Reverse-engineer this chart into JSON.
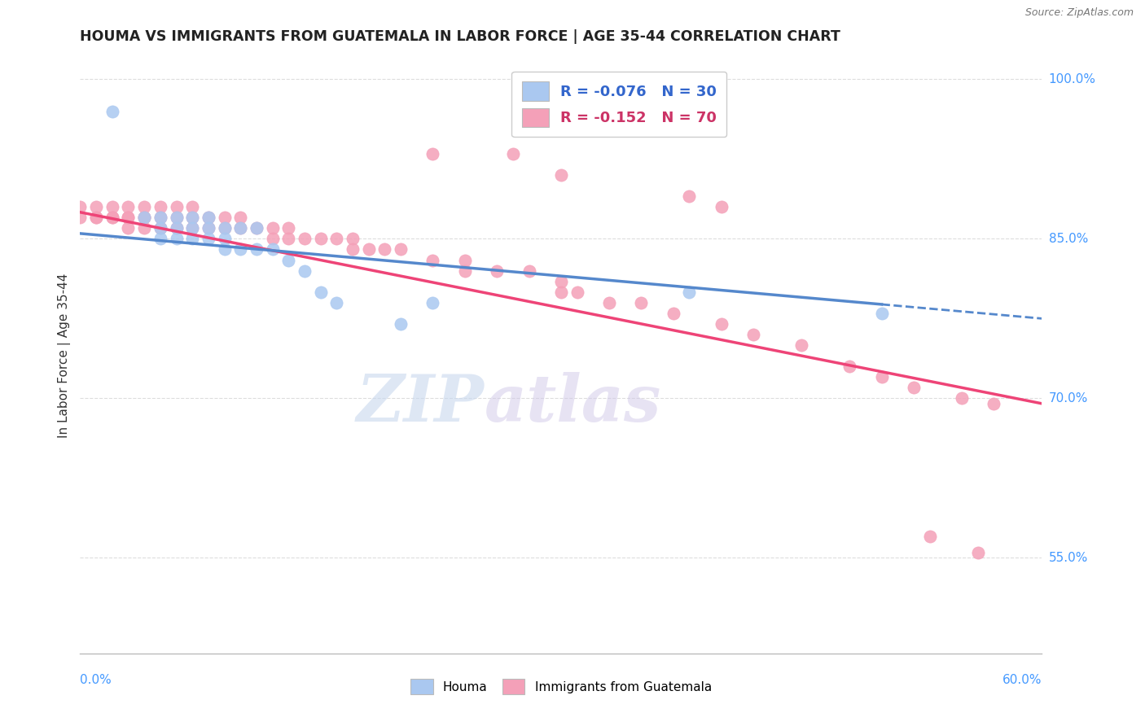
{
  "title": "HOUMA VS IMMIGRANTS FROM GUATEMALA IN LABOR FORCE | AGE 35-44 CORRELATION CHART",
  "source": "Source: ZipAtlas.com",
  "legend_blue_r": "R = -0.076",
  "legend_blue_n": "N = 30",
  "legend_pink_r": "R = -0.152",
  "legend_pink_n": "N = 70",
  "blue_color": "#aac8f0",
  "pink_color": "#f4a0b8",
  "blue_line_color": "#5588cc",
  "pink_line_color": "#ee4477",
  "watermark_zip": "ZIP",
  "watermark_atlas": "atlas",
  "xmin": 0.0,
  "xmax": 0.6,
  "ymin": 0.46,
  "ymax": 1.02,
  "ytick_vals": [
    1.0,
    0.85,
    0.7,
    0.55
  ],
  "ytick_labels": [
    "100.0%",
    "85.0%",
    "70.0%",
    "55.0%"
  ],
  "blue_scatter_x": [
    0.02,
    0.04,
    0.05,
    0.05,
    0.05,
    0.06,
    0.06,
    0.06,
    0.07,
    0.07,
    0.07,
    0.08,
    0.08,
    0.08,
    0.09,
    0.09,
    0.09,
    0.1,
    0.1,
    0.11,
    0.11,
    0.12,
    0.13,
    0.14,
    0.15,
    0.16,
    0.2,
    0.22,
    0.38,
    0.5
  ],
  "blue_scatter_y": [
    0.97,
    0.87,
    0.87,
    0.86,
    0.85,
    0.87,
    0.86,
    0.85,
    0.87,
    0.86,
    0.85,
    0.87,
    0.86,
    0.85,
    0.86,
    0.85,
    0.84,
    0.86,
    0.84,
    0.86,
    0.84,
    0.84,
    0.83,
    0.82,
    0.8,
    0.79,
    0.77,
    0.79,
    0.8,
    0.78
  ],
  "pink_scatter_x": [
    0.0,
    0.0,
    0.01,
    0.01,
    0.01,
    0.02,
    0.02,
    0.02,
    0.03,
    0.03,
    0.03,
    0.03,
    0.04,
    0.04,
    0.04,
    0.04,
    0.05,
    0.05,
    0.05,
    0.06,
    0.06,
    0.06,
    0.07,
    0.07,
    0.07,
    0.08,
    0.08,
    0.09,
    0.09,
    0.1,
    0.1,
    0.11,
    0.12,
    0.12,
    0.13,
    0.13,
    0.14,
    0.15,
    0.16,
    0.17,
    0.17,
    0.18,
    0.19,
    0.2,
    0.22,
    0.24,
    0.24,
    0.26,
    0.28,
    0.3,
    0.3,
    0.31,
    0.33,
    0.35,
    0.37,
    0.4,
    0.42,
    0.45,
    0.48,
    0.5,
    0.52,
    0.55,
    0.57,
    0.22,
    0.27,
    0.3,
    0.38,
    0.4,
    0.53,
    0.56
  ],
  "pink_scatter_y": [
    0.88,
    0.87,
    0.88,
    0.87,
    0.87,
    0.88,
    0.87,
    0.87,
    0.88,
    0.87,
    0.87,
    0.86,
    0.88,
    0.87,
    0.87,
    0.86,
    0.88,
    0.87,
    0.86,
    0.88,
    0.87,
    0.86,
    0.88,
    0.87,
    0.86,
    0.87,
    0.86,
    0.87,
    0.86,
    0.87,
    0.86,
    0.86,
    0.86,
    0.85,
    0.86,
    0.85,
    0.85,
    0.85,
    0.85,
    0.85,
    0.84,
    0.84,
    0.84,
    0.84,
    0.83,
    0.83,
    0.82,
    0.82,
    0.82,
    0.81,
    0.8,
    0.8,
    0.79,
    0.79,
    0.78,
    0.77,
    0.76,
    0.75,
    0.73,
    0.72,
    0.71,
    0.7,
    0.695,
    0.93,
    0.93,
    0.91,
    0.89,
    0.88,
    0.57,
    0.555
  ],
  "blue_trend_x0": 0.0,
  "blue_trend_y0": 0.855,
  "blue_trend_x1": 0.6,
  "blue_trend_y1": 0.775,
  "pink_trend_x0": 0.0,
  "pink_trend_y0": 0.875,
  "pink_trend_x1": 0.6,
  "pink_trend_y1": 0.695
}
